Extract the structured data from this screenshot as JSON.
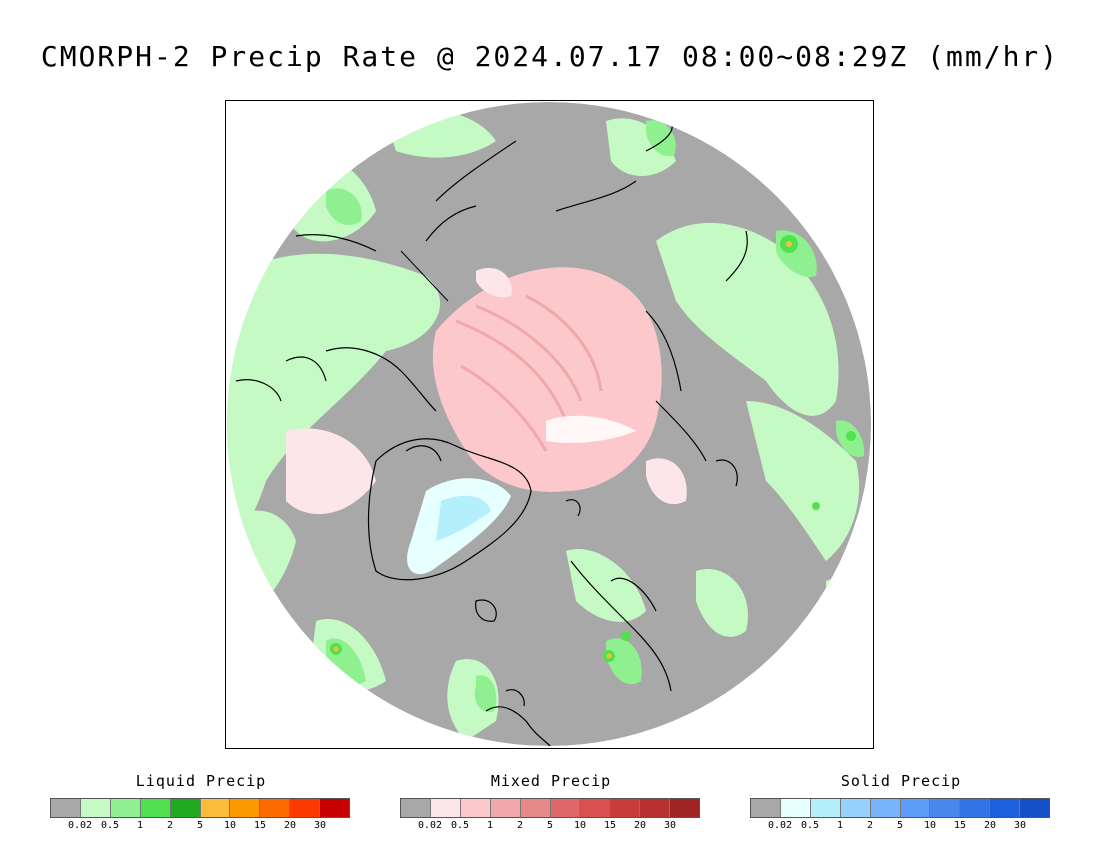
{
  "title": "CMORPH-2 Precip Rate @ 2024.07.17 08:00~08:29Z (mm/hr)",
  "legends": [
    {
      "title": "Liquid Precip",
      "colors": [
        "#a8a8a8",
        "#c5fac5",
        "#8ef08e",
        "#50e050",
        "#1faa1f",
        "#fcbc3c",
        "#fc9a00",
        "#fc6a00",
        "#fc3a00",
        "#c80000"
      ],
      "ticks": [
        "0.02",
        "0.5",
        "1",
        "2",
        "5",
        "10",
        "15",
        "20",
        "30"
      ]
    },
    {
      "title": "Mixed Precip",
      "colors": [
        "#a8a8a8",
        "#fde6ea",
        "#fcc8cc",
        "#f0a8aa",
        "#e88888",
        "#e06868",
        "#d85050",
        "#c83c3c",
        "#b83030",
        "#a02424"
      ],
      "ticks": [
        "0.02",
        "0.5",
        "1",
        "2",
        "5",
        "10",
        "15",
        "20",
        "30"
      ]
    },
    {
      "title": "Solid Precip",
      "colors": [
        "#a8a8a8",
        "#e6ffff",
        "#b4f0fc",
        "#96d2fc",
        "#78b4fc",
        "#5a9cf6",
        "#4688ec",
        "#3274e6",
        "#1e5fdc",
        "#1450c8"
      ],
      "ticks": [
        "0.02",
        "0.5",
        "1",
        "2",
        "5",
        "10",
        "15",
        "20",
        "30"
      ]
    }
  ]
}
